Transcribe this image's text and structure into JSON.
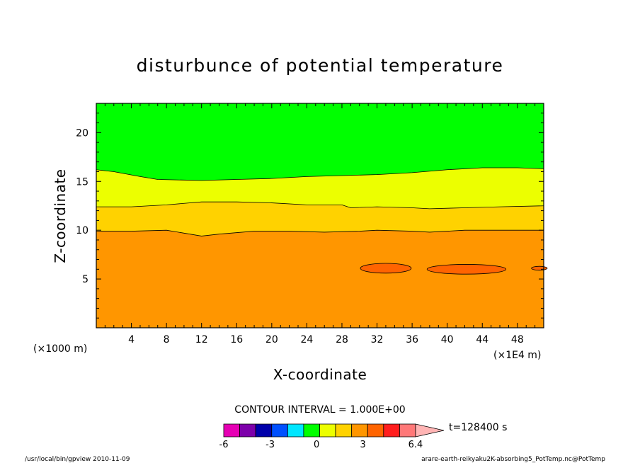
{
  "chart_data": {
    "type": "contour",
    "title": "disturbunce of potential temperature",
    "xlabel": "X-coordinate",
    "ylabel": "Z-coordinate",
    "x_unit_left": "(×1000 m)",
    "x_unit_right": "(×1E4 m)",
    "xlim": [
      0,
      51
    ],
    "ylim": [
      0,
      23
    ],
    "x_ticks": [
      4,
      8,
      12,
      16,
      20,
      24,
      28,
      32,
      36,
      40,
      44,
      48
    ],
    "y_ticks": [
      5,
      10,
      15,
      20
    ],
    "contour_interval_text": "CONTOUR INTERVAL = 1.000E+00",
    "time_label": "t=128400 s",
    "colorbar": {
      "colors": [
        "#e600b4",
        "#7d00aa",
        "#0000aa",
        "#0050ff",
        "#00e6ff",
        "#00ff00",
        "#ecff00",
        "#ffd200",
        "#ff9600",
        "#ff6400",
        "#ff1e1e",
        "#ff7878",
        "#ffb4b4"
      ],
      "tick_labels": [
        "-6",
        "-3",
        "0",
        "3",
        "6.4"
      ],
      "tick_values": [
        -6,
        -3,
        0,
        3,
        6.4
      ]
    },
    "bands": [
      {
        "level_range": "0 to 1",
        "color": "#00ff00",
        "upper_boundary": [
          [
            0,
            23
          ],
          [
            51,
            23
          ]
        ],
        "lower_boundary": [
          [
            0,
            16.2
          ],
          [
            2,
            16
          ],
          [
            5,
            15.5
          ],
          [
            7,
            15.2
          ],
          [
            12,
            15.1
          ],
          [
            16,
            15.2
          ],
          [
            20,
            15.3
          ],
          [
            24,
            15.5
          ],
          [
            28,
            15.6
          ],
          [
            32,
            15.7
          ],
          [
            36,
            15.9
          ],
          [
            40,
            16.2
          ],
          [
            44,
            16.4
          ],
          [
            48,
            16.4
          ],
          [
            51,
            16.3
          ]
        ]
      },
      {
        "level_range": "1 to 2",
        "color": "#ecff00",
        "lower_boundary": [
          [
            0,
            12.4
          ],
          [
            4,
            12.4
          ],
          [
            8,
            12.6
          ],
          [
            12,
            12.9
          ],
          [
            16,
            12.9
          ],
          [
            20,
            12.8
          ],
          [
            24,
            12.6
          ],
          [
            28,
            12.6
          ],
          [
            29,
            12.3
          ],
          [
            32,
            12.4
          ],
          [
            36,
            12.3
          ],
          [
            38,
            12.2
          ],
          [
            42,
            12.3
          ],
          [
            46,
            12.4
          ],
          [
            51,
            12.5
          ]
        ]
      },
      {
        "level_range": "2 to 3",
        "color": "#ffd200",
        "lower_boundary": [
          [
            0,
            9.9
          ],
          [
            4,
            9.9
          ],
          [
            8,
            10.0
          ],
          [
            10,
            9.7
          ],
          [
            12,
            9.4
          ],
          [
            14,
            9.6
          ],
          [
            18,
            9.9
          ],
          [
            22,
            9.9
          ],
          [
            26,
            9.8
          ],
          [
            30,
            9.9
          ],
          [
            32,
            10.0
          ],
          [
            36,
            9.9
          ],
          [
            38,
            9.8
          ],
          [
            42,
            10.0
          ],
          [
            51,
            10.0
          ]
        ]
      },
      {
        "level_range": "3 to 4",
        "color": "#ff9600",
        "lower_boundary": [
          [
            0,
            0
          ],
          [
            51,
            0
          ]
        ]
      }
    ],
    "cells": [
      {
        "level_range": "4 to 5",
        "color": "#ff6400",
        "cx": 33,
        "cz": 6.1,
        "rx": 2.9,
        "rz": 0.5
      },
      {
        "level_range": "4 to 5",
        "color": "#ff6400",
        "cx": 42.2,
        "cz": 6.0,
        "rx": 4.5,
        "rz": 0.5
      },
      {
        "level_range": "4 to 5",
        "color": "#ff6400",
        "cx": 50.5,
        "cz": 6.1,
        "rx": 0.9,
        "rz": 0.2
      }
    ]
  },
  "footer": {
    "left": "/usr/local/bin/gpview   2010-11-09",
    "right": "arare-earth-reikyaku2K-absorbing5_PotTemp.nc@PotTemp"
  }
}
